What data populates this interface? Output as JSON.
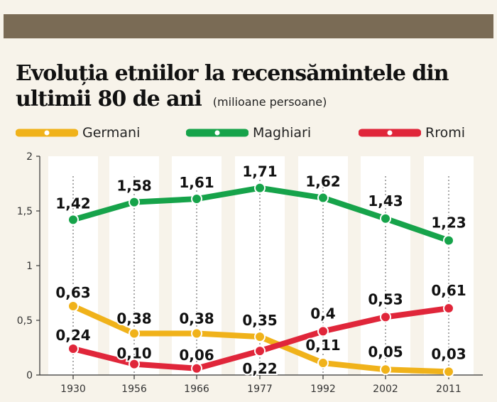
{
  "chart_data": {
    "type": "line",
    "title": "Evoluția etniilor la recensămintele din ultimii 80 de ani",
    "subtitle": "(milioane persoane)",
    "categories": [
      "1930",
      "1956",
      "1966",
      "1977",
      "1992",
      "2002",
      "2011"
    ],
    "ylim": [
      0,
      2
    ],
    "yticks": [
      "0",
      "0,5",
      "1",
      "1,5",
      "2"
    ],
    "grid": false,
    "legend_position": "top",
    "series": [
      {
        "name": "Germani",
        "color": "#f0b21a",
        "values": [
          0.63,
          0.38,
          0.38,
          0.35,
          0.11,
          0.05,
          0.03
        ],
        "labels": [
          "0,63",
          "0,38",
          "0,38",
          "0,35",
          "0,11",
          "0,05",
          "0,03"
        ]
      },
      {
        "name": "Maghiari",
        "color": "#16a34a",
        "values": [
          1.42,
          1.58,
          1.61,
          1.71,
          1.62,
          1.43,
          1.23
        ],
        "labels": [
          "1,42",
          "1,58",
          "1,61",
          "1,71",
          "1,62",
          "1,43",
          "1,23"
        ]
      },
      {
        "name": "Rromi",
        "color": "#e0263a",
        "values": [
          0.24,
          0.1,
          0.06,
          0.22,
          0.4,
          0.53,
          0.61
        ],
        "labels": [
          "0,24",
          "0,10",
          "0,06",
          "0,22",
          "0,4",
          "0,53",
          "0,61"
        ]
      }
    ]
  }
}
